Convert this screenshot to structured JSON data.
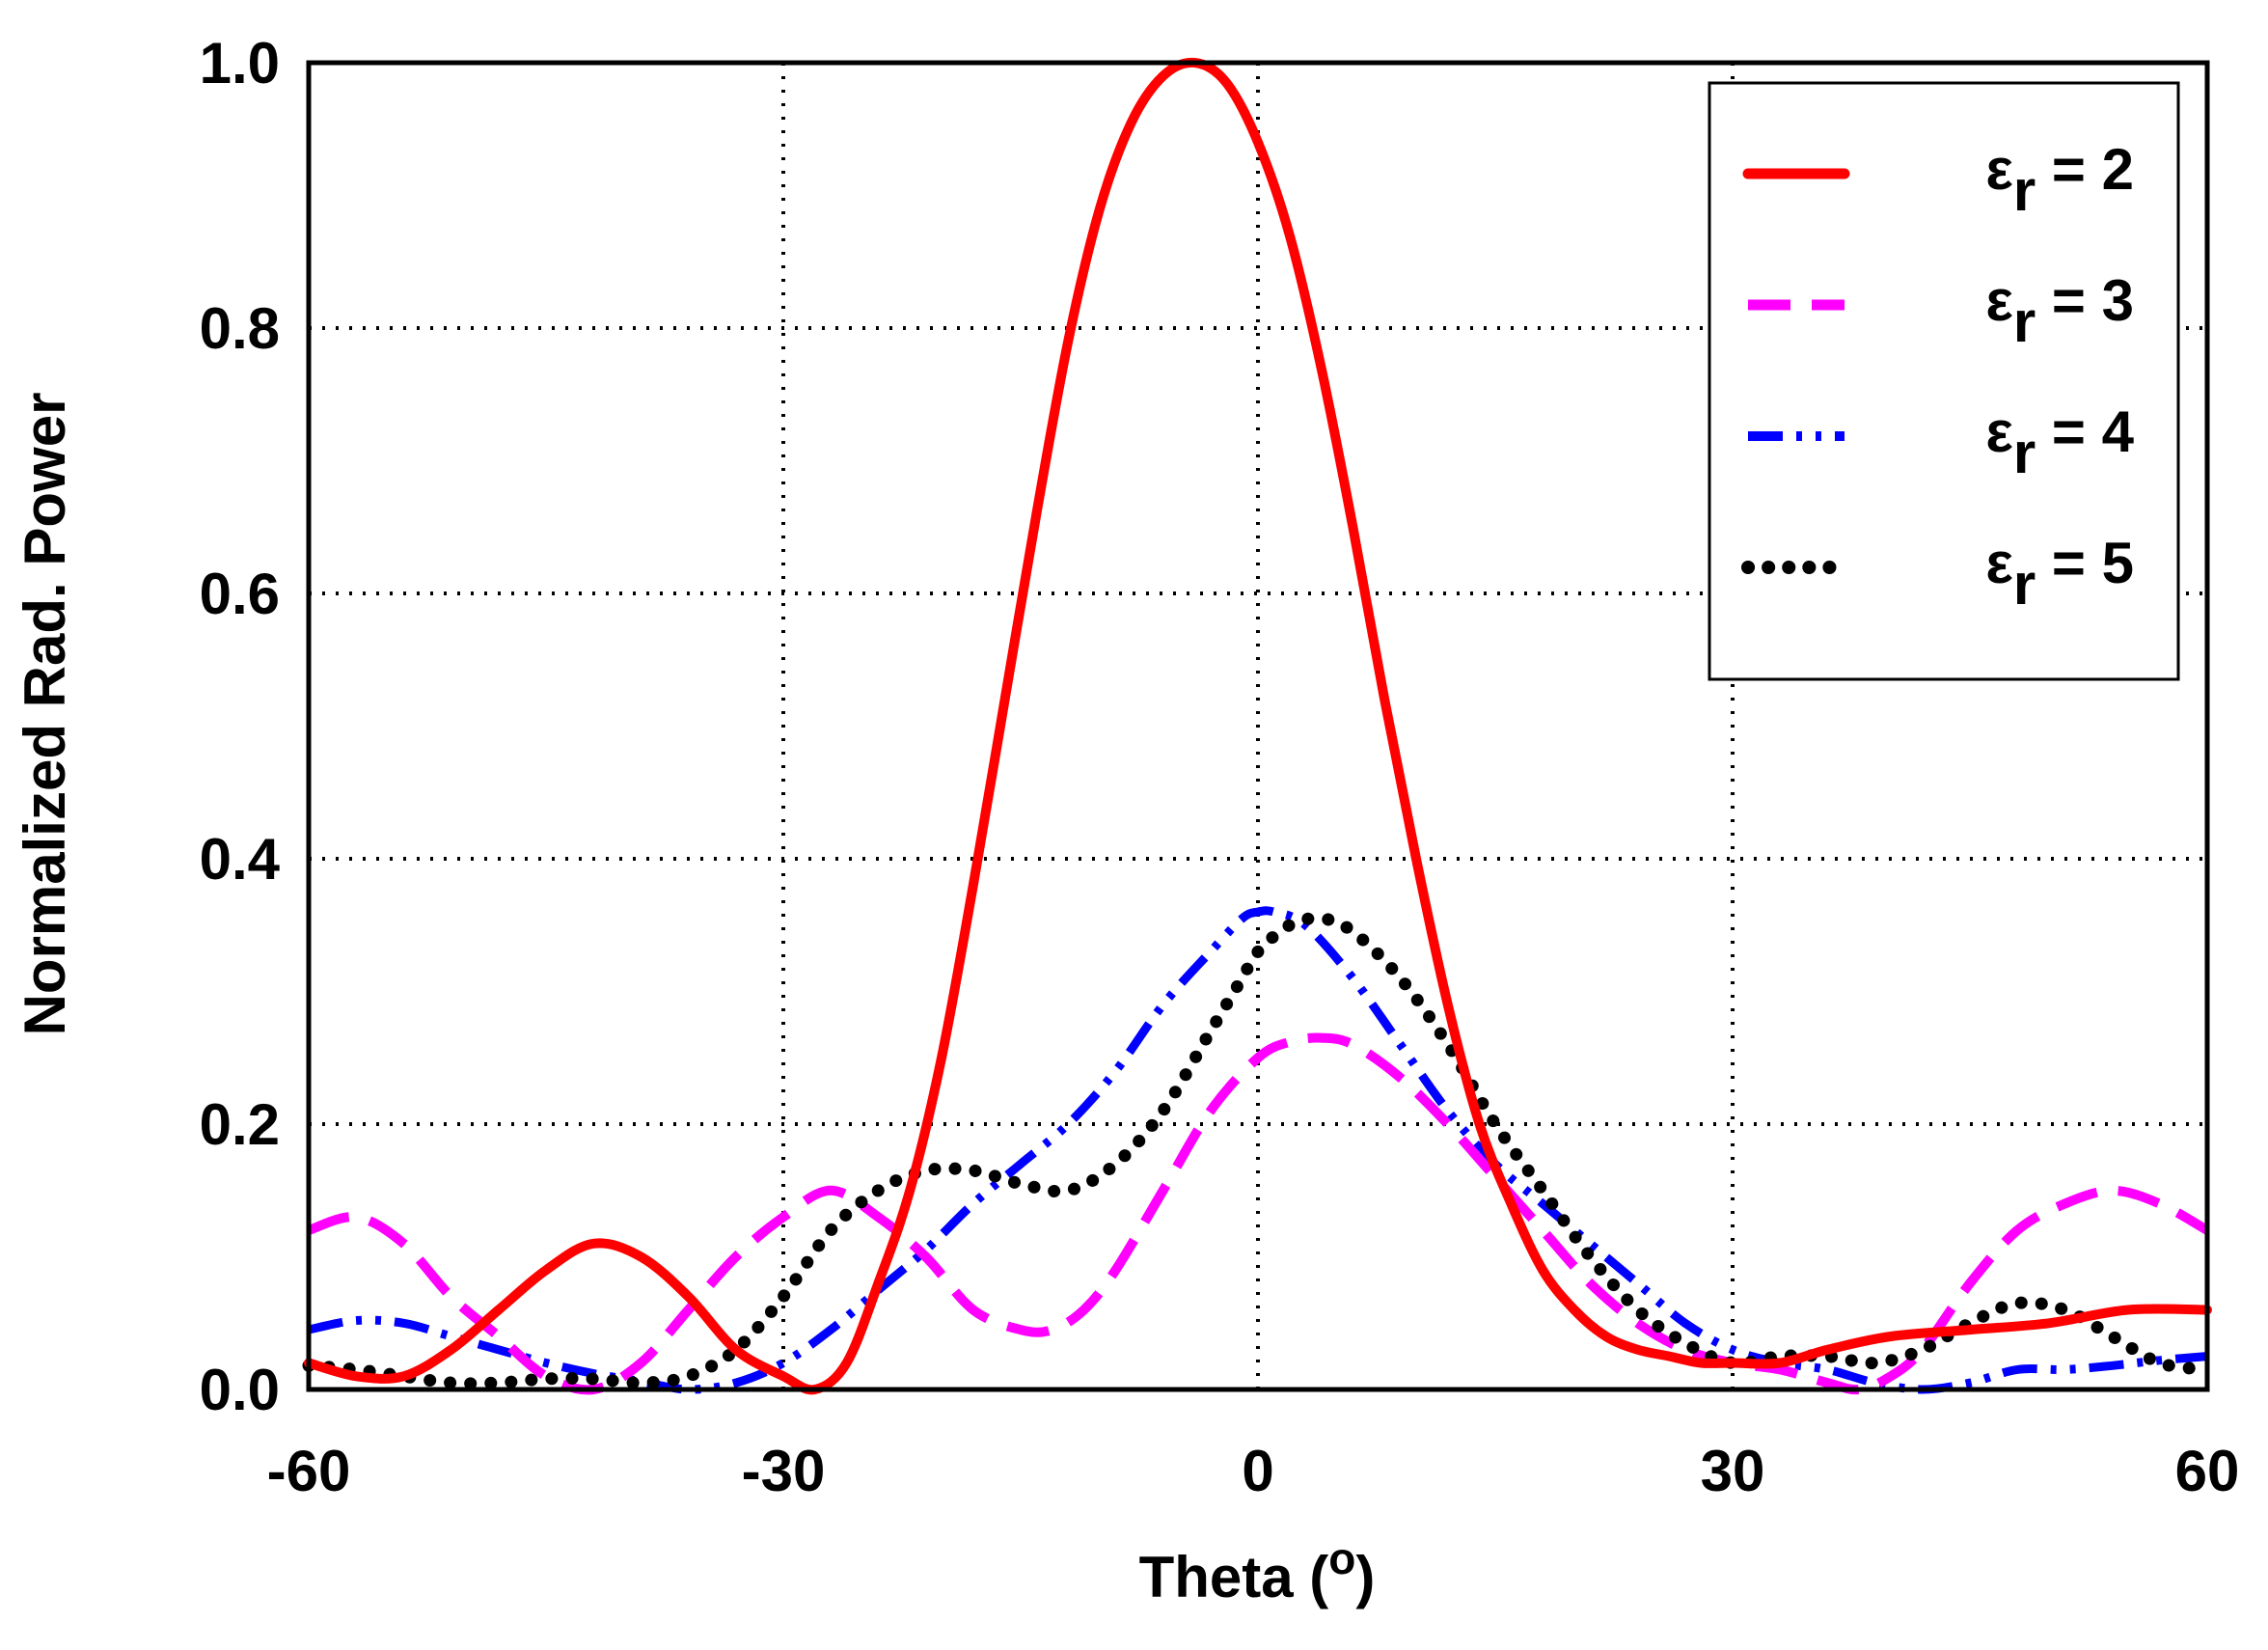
{
  "chart_data": {
    "type": "line",
    "xlabel": "Theta (",
    "xlabel_sup": "o",
    "xlabel_end": ")",
    "ylabel": "Normalized Rad. Power",
    "xlim": [
      -60,
      60
    ],
    "ylim": [
      0.0,
      1.0
    ],
    "xticks": [
      -60,
      -30,
      0,
      30,
      60
    ],
    "yticks": [
      0.0,
      0.2,
      0.4,
      0.6,
      0.8,
      1.0
    ],
    "xtick_labels": [
      "-60",
      "-30",
      "0",
      "30",
      "60"
    ],
    "ytick_labels": [
      "0.0",
      "0.2",
      "0.4",
      "0.6",
      "0.8",
      "1.0"
    ],
    "grid": true,
    "legend_position": "top-right",
    "series": [
      {
        "name": "εr = 2",
        "legend_symbol": "ε",
        "legend_sub": "r",
        "legend_rest": " = 2",
        "color": "#ff0000",
        "style": "solid",
        "points": [
          [
            -60,
            0.02
          ],
          [
            -57,
            0.01
          ],
          [
            -54,
            0.01
          ],
          [
            -51,
            0.03
          ],
          [
            -48,
            0.06
          ],
          [
            -45,
            0.09
          ],
          [
            -42,
            0.11
          ],
          [
            -39,
            0.1
          ],
          [
            -36,
            0.07
          ],
          [
            -33,
            0.03
          ],
          [
            -30,
            0.01
          ],
          [
            -28,
            0.0
          ],
          [
            -26,
            0.02
          ],
          [
            -24,
            0.08
          ],
          [
            -22,
            0.15
          ],
          [
            -20,
            0.25
          ],
          [
            -18,
            0.38
          ],
          [
            -16,
            0.52
          ],
          [
            -14,
            0.66
          ],
          [
            -12,
            0.79
          ],
          [
            -10,
            0.89
          ],
          [
            -8,
            0.955
          ],
          [
            -6,
            0.99
          ],
          [
            -4,
            1.0
          ],
          [
            -2,
            0.985
          ],
          [
            0,
            0.94
          ],
          [
            2,
            0.87
          ],
          [
            4,
            0.77
          ],
          [
            6,
            0.65
          ],
          [
            8,
            0.52
          ],
          [
            10,
            0.4
          ],
          [
            12,
            0.29
          ],
          [
            14,
            0.2
          ],
          [
            16,
            0.14
          ],
          [
            18,
            0.09
          ],
          [
            20,
            0.06
          ],
          [
            22,
            0.04
          ],
          [
            24,
            0.03
          ],
          [
            26,
            0.025
          ],
          [
            28,
            0.02
          ],
          [
            30,
            0.02
          ],
          [
            33,
            0.02
          ],
          [
            36,
            0.03
          ],
          [
            40,
            0.04
          ],
          [
            45,
            0.045
          ],
          [
            50,
            0.05
          ],
          [
            55,
            0.06
          ],
          [
            60,
            0.06
          ]
        ]
      },
      {
        "name": "εr = 3",
        "legend_symbol": "ε",
        "legend_sub": "r",
        "legend_rest": " = 3",
        "color": "#ff00ff",
        "style": "dashed",
        "points": [
          [
            -60,
            0.12
          ],
          [
            -57,
            0.13
          ],
          [
            -54,
            0.11
          ],
          [
            -51,
            0.07
          ],
          [
            -48,
            0.04
          ],
          [
            -45,
            0.01
          ],
          [
            -42,
            0.0
          ],
          [
            -39,
            0.02
          ],
          [
            -36,
            0.06
          ],
          [
            -33,
            0.1
          ],
          [
            -30,
            0.13
          ],
          [
            -27,
            0.15
          ],
          [
            -24,
            0.13
          ],
          [
            -21,
            0.1
          ],
          [
            -18,
            0.06
          ],
          [
            -15,
            0.045
          ],
          [
            -13,
            0.045
          ],
          [
            -11,
            0.06
          ],
          [
            -9,
            0.09
          ],
          [
            -6,
            0.15
          ],
          [
            -3,
            0.21
          ],
          [
            0,
            0.25
          ],
          [
            2,
            0.262
          ],
          [
            4,
            0.265
          ],
          [
            6,
            0.26
          ],
          [
            9,
            0.235
          ],
          [
            12,
            0.2
          ],
          [
            15,
            0.16
          ],
          [
            18,
            0.12
          ],
          [
            21,
            0.08
          ],
          [
            24,
            0.05
          ],
          [
            27,
            0.03
          ],
          [
            30,
            0.02
          ],
          [
            33,
            0.015
          ],
          [
            36,
            0.005
          ],
          [
            38,
            0.0
          ],
          [
            40,
            0.01
          ],
          [
            42,
            0.03
          ],
          [
            45,
            0.08
          ],
          [
            48,
            0.12
          ],
          [
            51,
            0.14
          ],
          [
            54,
            0.15
          ],
          [
            57,
            0.14
          ],
          [
            60,
            0.12
          ]
        ]
      },
      {
        "name": "εr = 4",
        "legend_symbol": "ε",
        "legend_sub": "r",
        "legend_rest": " = 4",
        "color": "#0000ff",
        "style": "dashdotdot",
        "points": [
          [
            -60,
            0.045
          ],
          [
            -57,
            0.052
          ],
          [
            -54,
            0.05
          ],
          [
            -51,
            0.04
          ],
          [
            -48,
            0.03
          ],
          [
            -45,
            0.02
          ],
          [
            -42,
            0.012
          ],
          [
            -39,
            0.006
          ],
          [
            -36,
            0.0
          ],
          [
            -33,
            0.005
          ],
          [
            -30,
            0.02
          ],
          [
            -27,
            0.045
          ],
          [
            -24,
            0.075
          ],
          [
            -21,
            0.105
          ],
          [
            -18,
            0.14
          ],
          [
            -15,
            0.17
          ],
          [
            -12,
            0.2
          ],
          [
            -9,
            0.24
          ],
          [
            -6,
            0.29
          ],
          [
            -3,
            0.33
          ],
          [
            -1,
            0.355
          ],
          [
            0,
            0.36
          ],
          [
            1,
            0.36
          ],
          [
            3,
            0.35
          ],
          [
            6,
            0.31
          ],
          [
            9,
            0.26
          ],
          [
            12,
            0.21
          ],
          [
            15,
            0.17
          ],
          [
            18,
            0.14
          ],
          [
            21,
            0.11
          ],
          [
            24,
            0.08
          ],
          [
            27,
            0.05
          ],
          [
            30,
            0.03
          ],
          [
            33,
            0.02
          ],
          [
            36,
            0.015
          ],
          [
            39,
            0.005
          ],
          [
            42,
            0.0
          ],
          [
            45,
            0.005
          ],
          [
            48,
            0.015
          ],
          [
            51,
            0.015
          ],
          [
            54,
            0.018
          ],
          [
            57,
            0.022
          ],
          [
            60,
            0.025
          ]
        ]
      },
      {
        "name": "εr = 5",
        "legend_symbol": "ε",
        "legend_sub": "r",
        "legend_rest": " = 5",
        "color": "#000000",
        "style": "dotted",
        "points": [
          [
            -60,
            0.018
          ],
          [
            -57,
            0.015
          ],
          [
            -54,
            0.01
          ],
          [
            -51,
            0.005
          ],
          [
            -48,
            0.005
          ],
          [
            -45,
            0.008
          ],
          [
            -42,
            0.008
          ],
          [
            -39,
            0.005
          ],
          [
            -36,
            0.01
          ],
          [
            -33,
            0.03
          ],
          [
            -30,
            0.07
          ],
          [
            -27,
            0.12
          ],
          [
            -24,
            0.15
          ],
          [
            -21,
            0.165
          ],
          [
            -18,
            0.165
          ],
          [
            -15,
            0.155
          ],
          [
            -12,
            0.15
          ],
          [
            -9,
            0.17
          ],
          [
            -6,
            0.21
          ],
          [
            -3,
            0.27
          ],
          [
            -1,
            0.31
          ],
          [
            0,
            0.33
          ],
          [
            2,
            0.35
          ],
          [
            4,
            0.355
          ],
          [
            6,
            0.345
          ],
          [
            9,
            0.31
          ],
          [
            12,
            0.26
          ],
          [
            15,
            0.2
          ],
          [
            18,
            0.15
          ],
          [
            21,
            0.1
          ],
          [
            24,
            0.06
          ],
          [
            27,
            0.035
          ],
          [
            30,
            0.02
          ],
          [
            33,
            0.025
          ],
          [
            36,
            0.025
          ],
          [
            39,
            0.02
          ],
          [
            42,
            0.03
          ],
          [
            45,
            0.05
          ],
          [
            48,
            0.065
          ],
          [
            51,
            0.06
          ],
          [
            54,
            0.04
          ],
          [
            57,
            0.02
          ],
          [
            60,
            0.015
          ]
        ]
      }
    ]
  }
}
